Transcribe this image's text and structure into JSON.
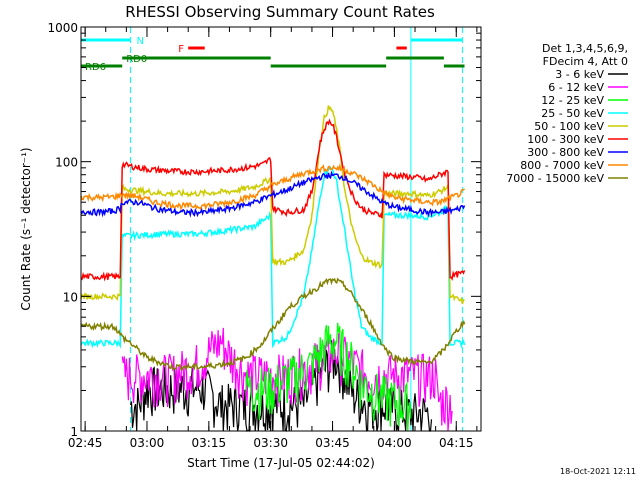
{
  "chart_data": {
    "type": "line",
    "title": "RHESSI Observing Summary Count Rates",
    "xlabel": "Start Time (17-Jul-05 02:44:02)",
    "ylabel": "Count Rate (s⁻¹ detector⁻¹)",
    "x_unit": "minutes since 02:44:02",
    "xlim": [
      0,
      97
    ],
    "ylim": [
      1,
      1000
    ],
    "yscale": "log",
    "x_ticks": [
      {
        "x": 1,
        "label": "02:45"
      },
      {
        "x": 16,
        "label": "03:00"
      },
      {
        "x": 31,
        "label": "03:15"
      },
      {
        "x": 46,
        "label": "03:30"
      },
      {
        "x": 61,
        "label": "03:45"
      },
      {
        "x": 76,
        "label": "04:00"
      },
      {
        "x": 91,
        "label": "04:15"
      }
    ],
    "y_ticks": [
      {
        "y": 1,
        "label": "1"
      },
      {
        "y": 10,
        "label": "10"
      },
      {
        "y": 100,
        "label": "100"
      },
      {
        "y": 1000,
        "label": "1000"
      }
    ],
    "legend_title": [
      "Det 1,3,4,5,6,9,",
      "FDecim 4, Att 0"
    ],
    "legend_position": "right",
    "series": [
      {
        "name": "3 - 6 keV",
        "color": "#000000",
        "noisy": true,
        "points": [
          [
            12,
            1.5
          ],
          [
            14,
            1.5
          ],
          [
            16,
            2
          ],
          [
            20,
            2
          ],
          [
            25,
            2
          ],
          [
            30,
            2
          ],
          [
            34,
            1.5
          ],
          [
            40,
            1.5
          ],
          [
            46,
            1.5
          ],
          [
            50,
            1.5
          ],
          [
            54,
            1.5
          ],
          [
            56,
            2
          ],
          [
            58,
            2.5
          ],
          [
            60,
            3
          ],
          [
            62,
            3.5
          ],
          [
            64,
            2.5
          ],
          [
            66,
            1.8
          ],
          [
            70,
            1.5
          ],
          [
            74,
            1.5
          ],
          [
            80,
            1.3
          ],
          [
            85,
            1.3
          ]
        ]
      },
      {
        "name": "6 - 12 keV",
        "color": "#ff00ff",
        "noisy": true,
        "points": [
          [
            10,
            2.5
          ],
          [
            16,
            2.5
          ],
          [
            22,
            2.5
          ],
          [
            28,
            3
          ],
          [
            32,
            4
          ],
          [
            34,
            4.5
          ],
          [
            36,
            3.5
          ],
          [
            40,
            2.5
          ],
          [
            46,
            2.5
          ],
          [
            50,
            2.5
          ],
          [
            56,
            3
          ],
          [
            60,
            3.5
          ],
          [
            62,
            3.8
          ],
          [
            66,
            3
          ],
          [
            70,
            2.5
          ],
          [
            76,
            2.5
          ],
          [
            82,
            2.5
          ],
          [
            86,
            2.5
          ],
          [
            86.5,
            1.6
          ],
          [
            90,
            1.6
          ]
        ]
      },
      {
        "name": "12 - 25 keV",
        "color": "#00ff00",
        "noisy": true,
        "points": [
          [
            40,
            2
          ],
          [
            46,
            2
          ],
          [
            48,
            2.2
          ],
          [
            52,
            2.5
          ],
          [
            56,
            3
          ],
          [
            60,
            4.5
          ],
          [
            62,
            4.5
          ],
          [
            66,
            3
          ],
          [
            68,
            2.2
          ],
          [
            72,
            1.8
          ],
          [
            76,
            1.6
          ],
          [
            80,
            1.5
          ]
        ]
      },
      {
        "name": "25 - 50 keV",
        "color": "#00ffff",
        "points": [
          [
            0,
            4.5
          ],
          [
            4,
            4.5
          ],
          [
            8,
            4.5
          ],
          [
            9.5,
            4.5
          ],
          [
            10,
            28
          ],
          [
            20,
            29
          ],
          [
            28,
            29
          ],
          [
            36,
            31
          ],
          [
            42,
            33
          ],
          [
            45,
            38
          ],
          [
            46,
            40
          ],
          [
            46.5,
            4.5
          ],
          [
            50,
            5
          ],
          [
            54,
            10
          ],
          [
            56,
            22
          ],
          [
            58,
            55
          ],
          [
            59,
            80
          ],
          [
            60,
            90
          ],
          [
            61,
            88
          ],
          [
            62,
            70
          ],
          [
            64,
            30
          ],
          [
            66,
            12
          ],
          [
            68,
            6
          ],
          [
            70,
            5
          ],
          [
            73,
            4.5
          ],
          [
            73.5,
            40
          ],
          [
            80,
            40
          ],
          [
            84,
            39
          ],
          [
            87,
            42
          ],
          [
            89,
            46
          ],
          [
            89.5,
            4.5
          ],
          [
            93,
            4.5
          ]
        ]
      },
      {
        "name": "50 - 100 keV",
        "color": "#cccc00",
        "points": [
          [
            0,
            10
          ],
          [
            4,
            10
          ],
          [
            8,
            10
          ],
          [
            9.5,
            10
          ],
          [
            10,
            63
          ],
          [
            20,
            58
          ],
          [
            28,
            58
          ],
          [
            36,
            60
          ],
          [
            42,
            65
          ],
          [
            45,
            72
          ],
          [
            46,
            75
          ],
          [
            46.5,
            18
          ],
          [
            50,
            18
          ],
          [
            54,
            22
          ],
          [
            56,
            40
          ],
          [
            58,
            140
          ],
          [
            59,
            210
          ],
          [
            60,
            250
          ],
          [
            61,
            240
          ],
          [
            62,
            170
          ],
          [
            63,
            110
          ],
          [
            64,
            60
          ],
          [
            66,
            30
          ],
          [
            68,
            20
          ],
          [
            70,
            18
          ],
          [
            73,
            17
          ],
          [
            73.5,
            58
          ],
          [
            80,
            58
          ],
          [
            84,
            56
          ],
          [
            87,
            60
          ],
          [
            89,
            65
          ],
          [
            89.5,
            10
          ],
          [
            93,
            9
          ]
        ]
      },
      {
        "name": "100 - 300 keV",
        "color": "#ff0000",
        "points": [
          [
            0,
            14
          ],
          [
            4,
            14
          ],
          [
            8,
            14
          ],
          [
            9.5,
            14
          ],
          [
            10,
            95
          ],
          [
            16,
            88
          ],
          [
            22,
            85
          ],
          [
            28,
            84
          ],
          [
            34,
            86
          ],
          [
            40,
            90
          ],
          [
            44,
            95
          ],
          [
            46,
            105
          ],
          [
            46.5,
            45
          ],
          [
            50,
            42
          ],
          [
            54,
            44
          ],
          [
            56,
            60
          ],
          [
            57,
            90
          ],
          [
            58,
            140
          ],
          [
            59,
            175
          ],
          [
            60,
            200
          ],
          [
            61,
            190
          ],
          [
            62,
            150
          ],
          [
            63,
            110
          ],
          [
            64,
            80
          ],
          [
            66,
            55
          ],
          [
            68,
            45
          ],
          [
            70,
            42
          ],
          [
            73,
            40
          ],
          [
            73.5,
            80
          ],
          [
            78,
            78
          ],
          [
            82,
            76
          ],
          [
            84,
            73
          ],
          [
            87,
            80
          ],
          [
            89,
            85
          ],
          [
            89.5,
            14
          ],
          [
            93,
            15
          ]
        ]
      },
      {
        "name": "300 - 800 keV",
        "color": "#0000ff",
        "points": [
          [
            0,
            43
          ],
          [
            4,
            42
          ],
          [
            8,
            43
          ],
          [
            9.5,
            45
          ],
          [
            10,
            50
          ],
          [
            14,
            50
          ],
          [
            18,
            45
          ],
          [
            24,
            42
          ],
          [
            30,
            42
          ],
          [
            36,
            45
          ],
          [
            42,
            50
          ],
          [
            46,
            56
          ],
          [
            50,
            62
          ],
          [
            54,
            70
          ],
          [
            58,
            77
          ],
          [
            60,
            79
          ],
          [
            62,
            79
          ],
          [
            64,
            76
          ],
          [
            66,
            70
          ],
          [
            70,
            58
          ],
          [
            73,
            50
          ],
          [
            76,
            46
          ],
          [
            80,
            44
          ],
          [
            84,
            42
          ],
          [
            87,
            42
          ],
          [
            89,
            43
          ],
          [
            91,
            44
          ],
          [
            93,
            47
          ]
        ]
      },
      {
        "name": "800 - 7000 keV",
        "color": "#ff8800",
        "points": [
          [
            0,
            55
          ],
          [
            4,
            54
          ],
          [
            8,
            55
          ],
          [
            9.5,
            56
          ],
          [
            10,
            57
          ],
          [
            14,
            55
          ],
          [
            18,
            50
          ],
          [
            24,
            47
          ],
          [
            30,
            47
          ],
          [
            36,
            50
          ],
          [
            42,
            56
          ],
          [
            46,
            66
          ],
          [
            50,
            74
          ],
          [
            54,
            82
          ],
          [
            58,
            88
          ],
          [
            60,
            90
          ],
          [
            62,
            90
          ],
          [
            64,
            87
          ],
          [
            66,
            82
          ],
          [
            70,
            70
          ],
          [
            73,
            60
          ],
          [
            76,
            54
          ],
          [
            80,
            52
          ],
          [
            84,
            50
          ],
          [
            87,
            50
          ],
          [
            89,
            53
          ],
          [
            91,
            56
          ],
          [
            93,
            60
          ]
        ]
      },
      {
        "name": "7000 - 15000 keV",
        "color": "#808000",
        "points": [
          [
            0,
            6
          ],
          [
            8,
            6
          ],
          [
            10,
            5
          ],
          [
            12,
            4.5
          ],
          [
            16,
            3.5
          ],
          [
            22,
            3
          ],
          [
            30,
            3
          ],
          [
            36,
            3.2
          ],
          [
            40,
            3.5
          ],
          [
            44,
            4.5
          ],
          [
            46,
            5.5
          ],
          [
            48,
            6.5
          ],
          [
            50,
            8
          ],
          [
            54,
            10
          ],
          [
            58,
            12
          ],
          [
            60,
            13
          ],
          [
            62,
            13
          ],
          [
            64,
            12
          ],
          [
            66,
            10
          ],
          [
            68,
            8
          ],
          [
            70,
            6.5
          ],
          [
            72,
            5
          ],
          [
            74,
            4
          ],
          [
            76,
            3.5
          ],
          [
            80,
            3.3
          ],
          [
            84,
            3.2
          ],
          [
            86,
            3.5
          ],
          [
            88,
            4
          ],
          [
            90,
            5
          ],
          [
            92,
            6
          ],
          [
            93,
            6.5
          ]
        ]
      }
    ],
    "vertical_lines": [
      {
        "x": 0,
        "color": "#00ffff",
        "style": "solid"
      },
      {
        "x": 12,
        "color": "#00ffff",
        "style": "dashed"
      },
      {
        "x": 80,
        "color": "#00ffff",
        "style": "solid"
      },
      {
        "x": 92.5,
        "color": "#00ffff",
        "style": "dashed"
      }
    ],
    "flag_bars": [
      {
        "x0": 0,
        "x1": 12,
        "level": "top",
        "color": "#00ffff",
        "label": "N"
      },
      {
        "x0": 80,
        "x1": 92.5,
        "level": "top",
        "color": "#00ffff"
      },
      {
        "x0": 26,
        "x1": 30,
        "level": "mid",
        "color": "#ff0000",
        "label": "F"
      },
      {
        "x0": 76.5,
        "x1": 79,
        "level": "mid",
        "color": "#ff0000"
      },
      {
        "x0": 10,
        "x1": 46,
        "level": "low",
        "color": "#008000",
        "label": "RD0"
      },
      {
        "x0": 74,
        "x1": 88,
        "level": "low",
        "color": "#008000"
      },
      {
        "x0": 0,
        "x1": 10,
        "level": "lower",
        "color": "#008000",
        "label": "RD6"
      },
      {
        "x0": 46,
        "x1": 74,
        "level": "lower",
        "color": "#008000"
      },
      {
        "x0": 88,
        "x1": 93,
        "level": "lower",
        "color": "#008000"
      }
    ],
    "grid": false,
    "footer": "18-Oct-2021 12:11"
  }
}
